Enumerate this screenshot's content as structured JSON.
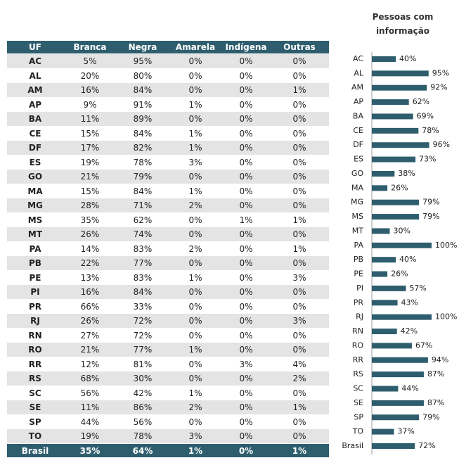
{
  "table": {
    "header": [
      "UF",
      "Branca",
      "Negra",
      "Amarela",
      "Indígena",
      "Outras"
    ],
    "rows": [
      [
        "AC",
        "5%",
        "95%",
        "0%",
        "0%",
        "0%"
      ],
      [
        "AL",
        "20%",
        "80%",
        "0%",
        "0%",
        "0%"
      ],
      [
        "AM",
        "16%",
        "84%",
        "0%",
        "0%",
        "1%"
      ],
      [
        "AP",
        "9%",
        "91%",
        "1%",
        "0%",
        "0%"
      ],
      [
        "BA",
        "11%",
        "89%",
        "0%",
        "0%",
        "0%"
      ],
      [
        "CE",
        "15%",
        "84%",
        "1%",
        "0%",
        "0%"
      ],
      [
        "DF",
        "17%",
        "82%",
        "1%",
        "0%",
        "0%"
      ],
      [
        "ES",
        "19%",
        "78%",
        "3%",
        "0%",
        "0%"
      ],
      [
        "GO",
        "21%",
        "79%",
        "0%",
        "0%",
        "0%"
      ],
      [
        "MA",
        "15%",
        "84%",
        "1%",
        "0%",
        "0%"
      ],
      [
        "MG",
        "28%",
        "71%",
        "2%",
        "0%",
        "0%"
      ],
      [
        "MS",
        "35%",
        "62%",
        "0%",
        "1%",
        "1%"
      ],
      [
        "MT",
        "26%",
        "74%",
        "0%",
        "0%",
        "0%"
      ],
      [
        "PA",
        "14%",
        "83%",
        "2%",
        "0%",
        "1%"
      ],
      [
        "PB",
        "22%",
        "77%",
        "0%",
        "0%",
        "0%"
      ],
      [
        "PE",
        "13%",
        "83%",
        "1%",
        "0%",
        "3%"
      ],
      [
        "PI",
        "16%",
        "84%",
        "0%",
        "0%",
        "0%"
      ],
      [
        "PR",
        "66%",
        "33%",
        "0%",
        "0%",
        "0%"
      ],
      [
        "RJ",
        "26%",
        "72%",
        "0%",
        "0%",
        "3%"
      ],
      [
        "RN",
        "27%",
        "72%",
        "0%",
        "0%",
        "0%"
      ],
      [
        "RO",
        "21%",
        "77%",
        "1%",
        "0%",
        "0%"
      ],
      [
        "RR",
        "12%",
        "81%",
        "0%",
        "3%",
        "4%"
      ],
      [
        "RS",
        "68%",
        "30%",
        "0%",
        "0%",
        "2%"
      ],
      [
        "SC",
        "56%",
        "42%",
        "1%",
        "0%",
        "0%"
      ],
      [
        "SE",
        "11%",
        "86%",
        "2%",
        "0%",
        "1%"
      ],
      [
        "SP",
        "44%",
        "56%",
        "0%",
        "0%",
        "0%"
      ],
      [
        "TO",
        "19%",
        "78%",
        "3%",
        "0%",
        "0%"
      ],
      [
        "Brasil",
        "35%",
        "64%",
        "1%",
        "0%",
        "1%"
      ]
    ]
  },
  "chart_data": {
    "type": "barh",
    "title": "Pessoas com informação",
    "color": "#2e5e6e",
    "categories": [
      "AC",
      "AL",
      "AM",
      "AP",
      "BA",
      "CE",
      "DF",
      "ES",
      "GO",
      "MA",
      "MG",
      "MS",
      "MT",
      "PA",
      "PB",
      "PE",
      "PI",
      "PR",
      "RJ",
      "RN",
      "RO",
      "RR",
      "RS",
      "SC",
      "SE",
      "SP",
      "TO",
      "Brasil"
    ],
    "values": [
      40,
      95,
      92,
      62,
      69,
      78,
      96,
      73,
      38,
      26,
      79,
      79,
      30,
      100,
      40,
      26,
      57,
      43,
      100,
      42,
      67,
      94,
      87,
      44,
      87,
      79,
      37,
      72
    ],
    "value_labels": [
      "40%",
      "95%",
      "92%",
      "62%",
      "69%",
      "78%",
      "96%",
      "73%",
      "38%",
      "26%",
      "79%",
      "79%",
      "30%",
      "100%",
      "40%",
      "26%",
      "57%",
      "43%",
      "100%",
      "42%",
      "67%",
      "94%",
      "87%",
      "44%",
      "87%",
      "79%",
      "37%",
      "72%"
    ],
    "xlim": [
      0,
      100
    ]
  }
}
